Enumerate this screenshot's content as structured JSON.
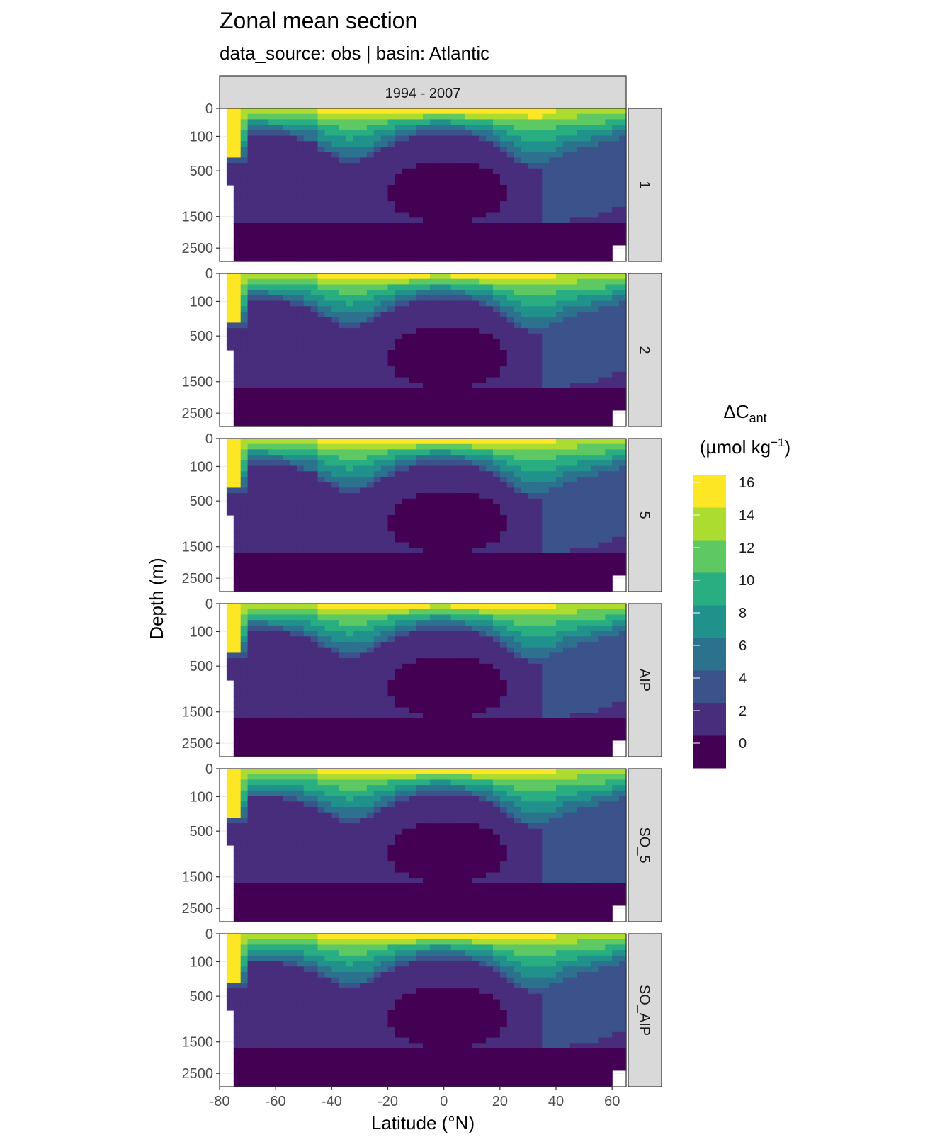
{
  "chart_data": {
    "type": "heatmap",
    "title": "Zonal mean section",
    "subtitle": "data_source:  obs | basin: Atlantic",
    "column_strip": "1994 - 2007",
    "row_strips": [
      "1",
      "2",
      "5",
      "AIP",
      "SO_5",
      "SO_AIP"
    ],
    "xlabel": "Latitude (°N)",
    "ylabel": "Depth (m)",
    "xlim": [
      -80,
      65
    ],
    "xticks": [
      -80,
      -60,
      -40,
      -20,
      0,
      20,
      40,
      60
    ],
    "xtick_labels": [
      "-80",
      "-60",
      "-40",
      "-20",
      "0",
      "20",
      "40",
      "60"
    ],
    "ylim": [
      0,
      3000
    ],
    "yscale": "sqrt",
    "y_reversed": true,
    "yticks": [
      0,
      100,
      500,
      1500,
      2500
    ],
    "ytick_labels": [
      "0",
      "100",
      "500",
      "1500",
      "2500"
    ],
    "legend": {
      "title_main": "ΔC",
      "title_sub": "ant",
      "unit_main": "(µmol kg",
      "unit_sup": "−1",
      "unit_end": ")",
      "placement": "right",
      "breaks": [
        0,
        2,
        4,
        6,
        8,
        10,
        12,
        14,
        16
      ],
      "break_labels": [
        "0",
        "2",
        "4",
        "6",
        "8",
        "10",
        "12",
        "14",
        "16"
      ],
      "colors": [
        "#440154",
        "#472d7b",
        "#3b528b",
        "#2c728e",
        "#21918c",
        "#28ae80",
        "#5ec962",
        "#addc30",
        "#fde725"
      ]
    },
    "grid": true,
    "panels": [
      {
        "name": "1",
        "deep_bottom": 1,
        "deep_mid": 2,
        "mode_lo": 0,
        "mode_hi": 0,
        "north_deep": 4,
        "sthermo": 1.0,
        "surface_yellow": 1.0
      },
      {
        "name": "2",
        "deep_bottom": 1,
        "deep_mid": 2,
        "mode_lo": 0,
        "mode_hi": 0,
        "north_deep": 4,
        "sthermo": 1.05,
        "surface_yellow": 0.8
      },
      {
        "name": "5",
        "deep_bottom": 1,
        "deep_mid": 2,
        "mode_lo": 0,
        "mode_hi": 0,
        "north_deep": 4,
        "sthermo": 1.0,
        "surface_yellow": 0.9
      },
      {
        "name": "AIP",
        "deep_bottom": 1,
        "deep_mid": 2,
        "mode_lo": 0,
        "mode_hi": 0,
        "north_deep": 4,
        "sthermo": 1.05,
        "surface_yellow": 0.8
      },
      {
        "name": "SO_5",
        "deep_bottom": 1,
        "deep_mid": 2,
        "mode_lo": 0,
        "mode_hi": 0,
        "north_deep": 5,
        "sthermo": 1.1,
        "surface_yellow": 0.9
      },
      {
        "name": "SO_AIP",
        "deep_bottom": 1,
        "deep_mid": 2,
        "mode_lo": 0,
        "mode_hi": 0,
        "north_deep": 4,
        "sthermo": 1.1,
        "surface_yellow": 0.9
      }
    ]
  }
}
